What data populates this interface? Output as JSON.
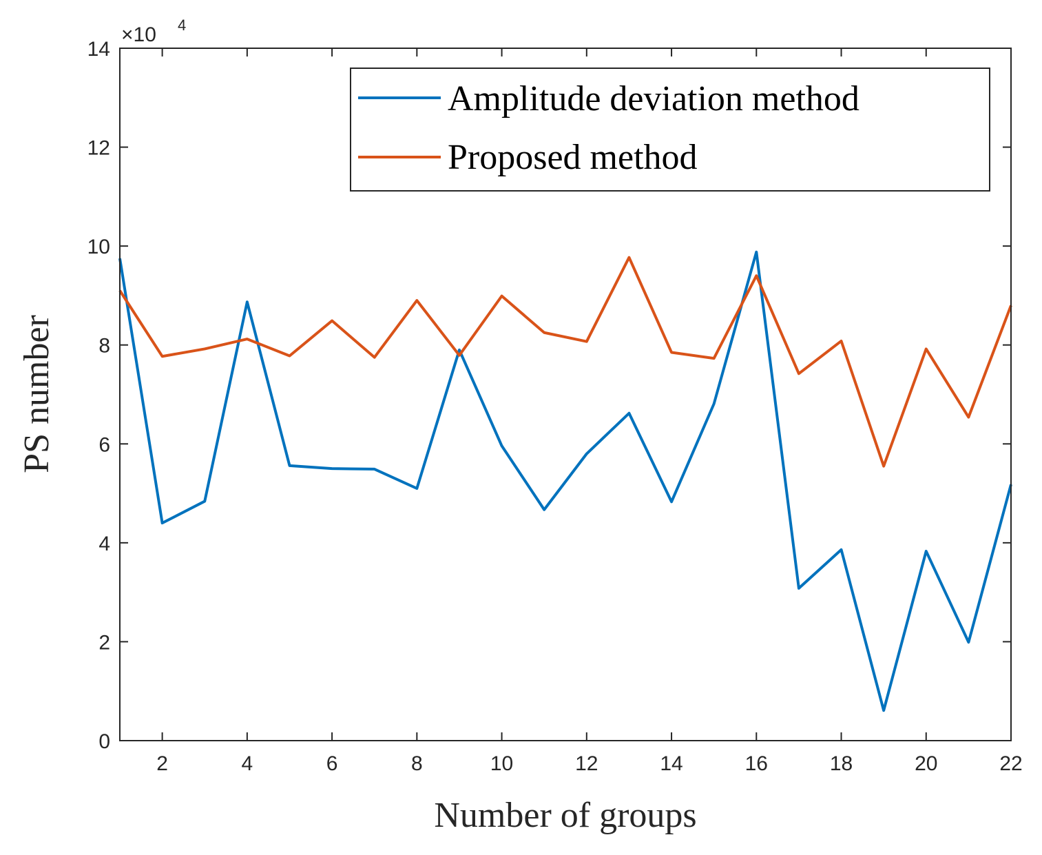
{
  "chart_data": {
    "type": "line",
    "title": "",
    "xlabel": "Number of groups",
    "ylabel": "PS number",
    "xlim": [
      1,
      22
    ],
    "ylim": [
      0,
      14
    ],
    "y_multiplier_base": "×10",
    "y_multiplier_exponent": "4",
    "x_ticks": [
      2,
      4,
      6,
      8,
      10,
      12,
      14,
      16,
      18,
      20,
      22
    ],
    "y_ticks": [
      0,
      2,
      4,
      6,
      8,
      10,
      12,
      14
    ],
    "legend_position": "top-right",
    "x": [
      1,
      2,
      3,
      4,
      5,
      6,
      7,
      8,
      9,
      10,
      11,
      12,
      13,
      14,
      15,
      16,
      17,
      18,
      19,
      20,
      21,
      22
    ],
    "series": [
      {
        "name": "Amplitude deviation method",
        "color": "#0072BD",
        "values": [
          9.75,
          4.4,
          4.84,
          8.87,
          5.56,
          5.5,
          5.49,
          5.1,
          7.9,
          5.96,
          4.67,
          5.8,
          6.62,
          4.83,
          6.81,
          9.88,
          3.08,
          3.86,
          0.61,
          3.83,
          1.99,
          5.18
        ]
      },
      {
        "name": "Proposed method",
        "color": "#D95319",
        "values": [
          9.1,
          7.77,
          7.92,
          8.12,
          7.78,
          8.49,
          7.75,
          8.9,
          7.79,
          8.99,
          8.25,
          8.07,
          9.77,
          7.85,
          7.73,
          9.4,
          7.42,
          8.08,
          5.55,
          7.92,
          6.54,
          8.8
        ]
      }
    ]
  }
}
